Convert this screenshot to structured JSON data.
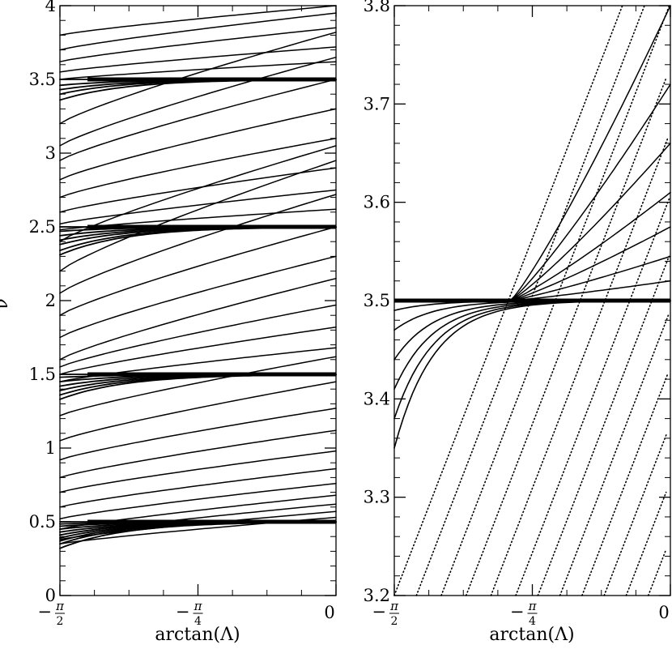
{
  "chart_data": [
    {
      "type": "line",
      "panel": "left",
      "xlabel": "arctan(Λ)",
      "ylabel": "ν",
      "xlim_label": [
        "−π/2",
        "0"
      ],
      "xticks": [
        {
          "num": "π",
          "den": "2",
          "neg": true
        },
        {
          "num": "π",
          "den": "4",
          "neg": true
        },
        {
          "num": "0",
          "den": "",
          "neg": false
        }
      ],
      "ylim": [
        0,
        4
      ],
      "yticks": [
        "0",
        "0.5",
        "1",
        "1.5",
        "2",
        "2.5",
        "3",
        "3.5",
        "4"
      ],
      "line_style": "solid",
      "series": [
        {
          "family": "plateau",
          "level": 0.5,
          "start_offsets": [
            -0.18,
            -0.15,
            -0.13,
            -0.11,
            -0.09,
            -0.07,
            -0.05,
            -0.03,
            -0.015,
            0.0
          ]
        },
        {
          "family": "plateau",
          "level": 1.5,
          "start_offsets": [
            -0.17,
            -0.14,
            -0.11,
            -0.08,
            -0.05,
            -0.02,
            0.0
          ]
        },
        {
          "family": "plateau",
          "level": 2.5,
          "start_offsets": [
            -0.19,
            -0.16,
            -0.12,
            -0.09,
            -0.06,
            -0.03,
            0.0
          ]
        },
        {
          "family": "plateau",
          "level": 3.5,
          "start_offsets": [
            -0.14,
            -0.1,
            -0.07,
            -0.04,
            0.0
          ]
        },
        {
          "family": "rising",
          "segments": [
            [
              0.35,
              0.53
            ],
            [
              0.38,
              0.57
            ],
            [
              0.41,
              0.62
            ],
            [
              0.45,
              0.68
            ],
            [
              0.52,
              0.76
            ],
            [
              0.6,
              0.86
            ],
            [
              0.7,
              0.98
            ],
            [
              0.8,
              1.12
            ],
            [
              0.92,
              1.27
            ],
            [
              1.05,
              1.45
            ],
            [
              1.22,
              1.62
            ],
            [
              1.45,
              1.68
            ],
            [
              1.5,
              1.82
            ],
            [
              1.55,
              1.97
            ],
            [
              1.6,
              2.15
            ],
            [
              1.75,
              2.3
            ],
            [
              1.9,
              2.5
            ],
            [
              2.05,
              2.72
            ],
            [
              2.2,
              2.95
            ],
            [
              2.4,
              3.05
            ],
            [
              2.48,
              2.62
            ],
            [
              2.52,
              2.75
            ],
            [
              2.6,
              2.9
            ],
            [
              2.7,
              3.1
            ],
            [
              2.82,
              3.3
            ],
            [
              2.95,
              3.5
            ],
            [
              3.05,
              3.65
            ],
            [
              3.2,
              3.82
            ],
            [
              3.5,
              3.62
            ],
            [
              3.55,
              3.72
            ],
            [
              3.62,
              3.85
            ],
            [
              3.7,
              3.95
            ],
            [
              3.8,
              4.0
            ]
          ]
        }
      ]
    },
    {
      "type": "line",
      "panel": "right",
      "xlabel": "arctan(Λ)",
      "ylabel": "",
      "xticks": [
        {
          "num": "π",
          "den": "2",
          "neg": true
        },
        {
          "num": "π",
          "den": "4",
          "neg": true
        },
        {
          "num": "0",
          "den": "",
          "neg": false
        }
      ],
      "ylim": [
        3.2,
        3.8
      ],
      "yticks": [
        "3.2",
        "3.3",
        "3.4",
        "3.5",
        "3.6",
        "3.7",
        "3.8"
      ],
      "line_style": "solid-and-dotted",
      "series": [
        {
          "family": "plateau",
          "level": 3.5,
          "start_values": [
            3.49,
            3.47,
            3.44,
            3.41,
            3.38,
            3.35
          ]
        },
        {
          "family": "fan",
          "origin": 3.5,
          "end_values": [
            3.52,
            3.545,
            3.575,
            3.61,
            3.66,
            3.72,
            3.8
          ]
        },
        {
          "family": "steep-dotted",
          "x_at_bottom": [
            0.0,
            0.08,
            0.17,
            0.26,
            0.35,
            0.44,
            0.52,
            0.6,
            0.68,
            0.76,
            0.84,
            0.92,
            0.98
          ],
          "slope": 1.15
        }
      ]
    }
  ]
}
